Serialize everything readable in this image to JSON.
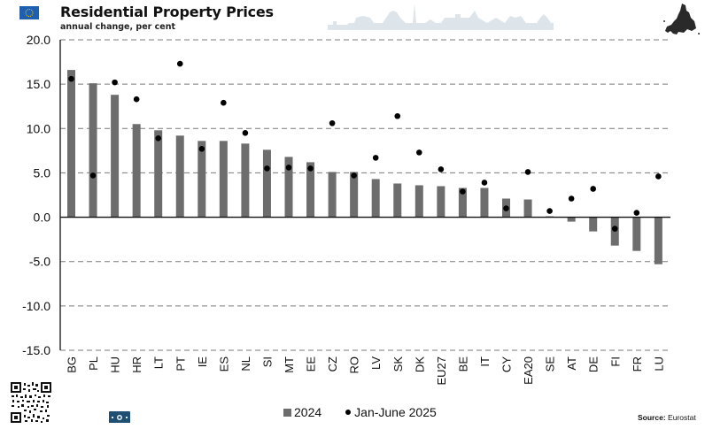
{
  "header": {
    "title": "Residential Property Prices",
    "subtitle": "annual change, per cent"
  },
  "footer": {
    "source_label": "Source:",
    "source_value": "Eurostat"
  },
  "colors": {
    "bar": "#6d6d6d",
    "dot": "#000000",
    "grid": "#7a7a7a",
    "flag": "#1f5fb0",
    "flag_stars": "#f5d10a"
  },
  "chart_data": {
    "type": "bar",
    "title": "Residential Property Prices",
    "subtitle": "annual change, per cent",
    "xlabel": "",
    "ylabel": "",
    "ylim": [
      -15,
      20
    ],
    "yticks": [
      20,
      15,
      10,
      5,
      0,
      -5,
      -10,
      -15
    ],
    "ytick_labels": [
      "20.0",
      "15.0",
      "10.0",
      "5.0",
      "0.0",
      "-5.0",
      "-10.0",
      "-15.0"
    ],
    "grid": "horizontal dashed",
    "legend_position": "bottom-center",
    "categories": [
      "BG",
      "PL",
      "HU",
      "HR",
      "LT",
      "PT",
      "IE",
      "ES",
      "NL",
      "SI",
      "MT",
      "EE",
      "CZ",
      "RO",
      "LV",
      "SK",
      "DK",
      "EU27",
      "BE",
      "IT",
      "CY",
      "EA20",
      "SE",
      "AT",
      "DE",
      "FI",
      "FR",
      "LU"
    ],
    "series": [
      {
        "name": "2024",
        "kind": "bar",
        "values": [
          16.6,
          15.1,
          13.8,
          10.5,
          9.8,
          9.2,
          8.6,
          8.6,
          8.3,
          7.6,
          6.8,
          6.2,
          5.1,
          5.1,
          4.3,
          3.8,
          3.6,
          3.5,
          3.3,
          3.3,
          2.1,
          2.0,
          0.1,
          -0.5,
          -1.6,
          -3.2,
          -3.8,
          -5.3
        ]
      },
      {
        "name": "Jan-June 2025",
        "kind": "dot",
        "values": [
          15.6,
          4.7,
          15.2,
          13.3,
          8.9,
          17.3,
          7.7,
          12.9,
          9.5,
          5.5,
          5.6,
          5.5,
          10.6,
          4.7,
          6.7,
          11.4,
          7.3,
          5.4,
          2.9,
          3.9,
          1.0,
          5.1,
          0.7,
          2.1,
          3.2,
          -1.3,
          0.5,
          4.6
        ]
      }
    ]
  }
}
